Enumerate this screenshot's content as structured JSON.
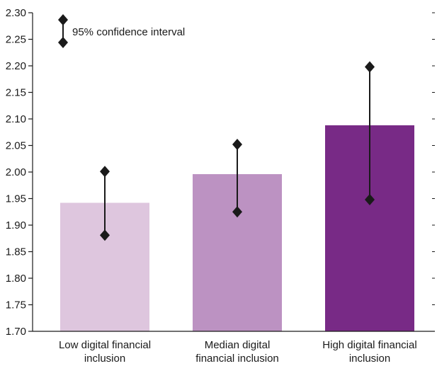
{
  "chart_data": {
    "type": "bar",
    "title": "",
    "xlabel": "",
    "ylabel": "",
    "ylim": [
      1.7,
      2.3
    ],
    "yticks": [
      "1.70",
      "1.75",
      "1.80",
      "1.85",
      "1.90",
      "1.95",
      "2.00",
      "2.05",
      "2.10",
      "2.15",
      "2.20",
      "2.25",
      "2.30"
    ],
    "categories": [
      [
        "Low digital financial",
        "inclusion"
      ],
      [
        "Median digital",
        "financial inclusion"
      ],
      [
        "High digital financial",
        "inclusion"
      ]
    ],
    "values": [
      1.942,
      1.996,
      2.088
    ],
    "ci_low": [
      1.881,
      1.925,
      1.948
    ],
    "ci_high": [
      2.001,
      2.052,
      2.198
    ],
    "colors": [
      "#dec6de",
      "#bc92c2",
      "#782a86"
    ],
    "legend": {
      "label": "95% confidence interval",
      "position": "top-left"
    },
    "grid": false
  }
}
